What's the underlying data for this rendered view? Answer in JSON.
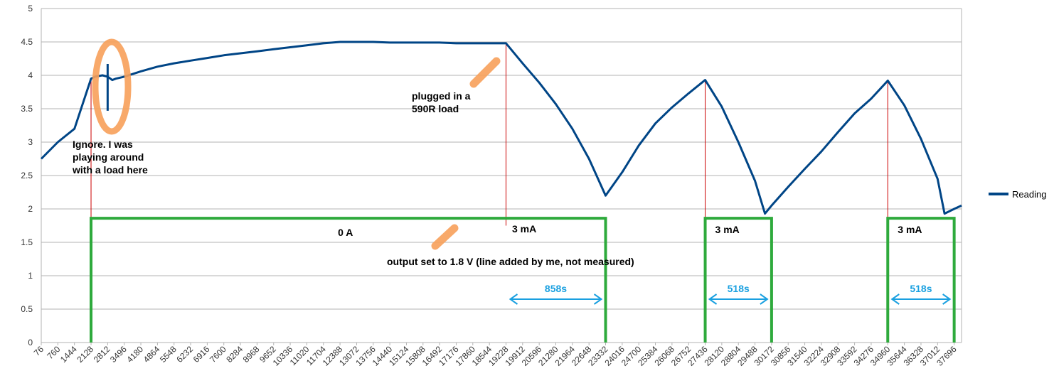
{
  "chart_data": {
    "type": "line",
    "ylim": [
      0,
      5
    ],
    "yticks": [
      0,
      0.5,
      1,
      1.5,
      2,
      2.5,
      3,
      3.5,
      4,
      4.5,
      5
    ],
    "xlim": [
      76,
      38000
    ],
    "xticks": [
      "76",
      "760",
      "1444",
      "2128",
      "2812",
      "3496",
      "4180",
      "4864",
      "5548",
      "6232",
      "6916",
      "7600",
      "8284",
      "8968",
      "9652",
      "10336",
      "11020",
      "11704",
      "12388",
      "13072",
      "13756",
      "14440",
      "15124",
      "15808",
      "16492",
      "17176",
      "17860",
      "18544",
      "19228",
      "19912",
      "20596",
      "21280",
      "21964",
      "22648",
      "23332",
      "24016",
      "24700",
      "25384",
      "26068",
      "26752",
      "27436",
      "28120",
      "28804",
      "29488",
      "30172",
      "30856",
      "31540",
      "32224",
      "32908",
      "33592",
      "34276",
      "34960",
      "35644",
      "36328",
      "37012",
      "37696"
    ],
    "grid": true,
    "legend": "right",
    "series": [
      {
        "name": "Reading",
        "color": "#004586",
        "x": [
          76,
          760,
          1444,
          2128,
          2300,
          2600,
          2812,
          3000,
          3150,
          3496,
          4180,
          4864,
          5548,
          6232,
          6916,
          7600,
          8284,
          8968,
          9652,
          10336,
          11020,
          11704,
          12388,
          13072,
          13756,
          14440,
          15124,
          15808,
          16492,
          17176,
          17860,
          18544,
          19228,
          19912,
          20596,
          21280,
          21964,
          22648,
          23332,
          24016,
          24700,
          25384,
          26068,
          26752,
          27436,
          28120,
          28804,
          29488,
          29900,
          30172,
          30856,
          31540,
          32224,
          32908,
          33592,
          34276,
          34960,
          35644,
          36328,
          37012,
          37300,
          37696,
          38000
        ],
        "y": [
          2.75,
          3.0,
          3.2,
          3.95,
          3.98,
          4.0,
          3.98,
          3.93,
          3.95,
          3.98,
          4.06,
          4.13,
          4.18,
          4.22,
          4.26,
          4.3,
          4.33,
          4.36,
          4.39,
          4.42,
          4.45,
          4.48,
          4.5,
          4.5,
          4.5,
          4.49,
          4.49,
          4.49,
          4.49,
          4.48,
          4.48,
          4.48,
          4.48,
          4.18,
          3.89,
          3.57,
          3.2,
          2.75,
          2.2,
          2.55,
          2.95,
          3.28,
          3.52,
          3.73,
          3.93,
          3.53,
          3.0,
          2.42,
          1.93,
          2.05,
          2.33,
          2.6,
          2.86,
          3.15,
          3.43,
          3.65,
          3.92,
          3.55,
          3.05,
          2.45,
          1.93,
          2.0,
          2.05
        ]
      }
    ],
    "spike": {
      "x": 2812,
      "y_low": 3.47,
      "y_high": 4.17
    },
    "output_line": {
      "y": 1.86,
      "label": "output set to 1.8 V (line added by me, not measured)"
    },
    "red_markers": [
      2128,
      19228,
      27436,
      34960
    ],
    "pulses": [
      {
        "x_start": 2128,
        "x_end": 23332,
        "label": "0 A"
      },
      {
        "x_start": 27436,
        "x_end": 30172,
        "label": "3 mA"
      },
      {
        "x_start": 34960,
        "x_end": 37696,
        "label": "3 mA"
      }
    ],
    "durations": [
      {
        "x_start": 19228,
        "x_end": 23332,
        "label": "858s"
      },
      {
        "x_start": 27436,
        "x_end": 30172,
        "label": "518s"
      },
      {
        "x_start": 34960,
        "x_end": 37696,
        "label": "518s"
      }
    ],
    "annotations": {
      "ignore": [
        "Ignore. I was",
        "playing around",
        "with a load here"
      ],
      "plugged": [
        "plugged in a",
        "590R load"
      ],
      "first_3ma": "3 mA"
    }
  }
}
